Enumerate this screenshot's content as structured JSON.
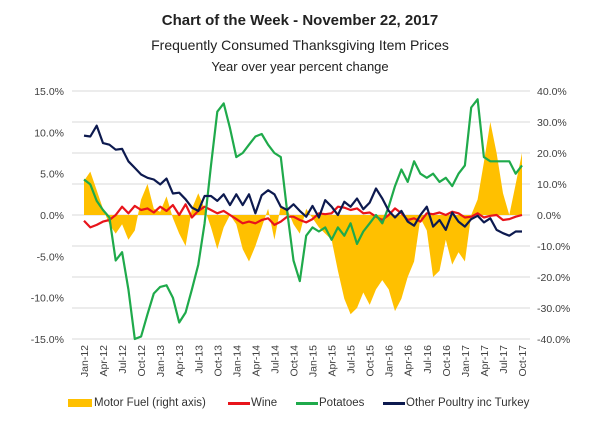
{
  "chart_data": {
    "type": "line",
    "title": "Chart of the Week - November 22, 2017",
    "subtitle": "Frequently Consumed Thanksgiving Item Prices",
    "subtitle2": "Year over year percent change",
    "left_axis": {
      "ylim": [
        -15,
        15
      ],
      "ticks": [
        "15.0%",
        "10.0%",
        "5.0%",
        "0.0%",
        "-5.0%",
        "-10.0%",
        "-15.0%"
      ],
      "tick_values": [
        15,
        10,
        5,
        0,
        -5,
        -10,
        -15
      ]
    },
    "right_axis": {
      "ylim": [
        -40,
        40
      ],
      "ticks": [
        "40.0%",
        "30.0%",
        "20.0%",
        "10.0%",
        "0.0%",
        "-10.0%",
        "-20.0%",
        "-30.0%",
        "-40.0%"
      ],
      "tick_values": [
        40,
        30,
        20,
        10,
        0,
        -10,
        -20,
        -30,
        -40
      ]
    },
    "x_tick_labels": [
      "Jan-12",
      "Apr-12",
      "Jul-12",
      "Oct-12",
      "Jan-13",
      "Apr-13",
      "Jul-13",
      "Oct-13",
      "Jan-14",
      "Apr-14",
      "Jul-14",
      "Oct-14",
      "Jan-15",
      "Apr-15",
      "Jul-15",
      "Oct-15",
      "Jan-16",
      "Apr-16",
      "Jul-16",
      "Oct-16",
      "Jan-17",
      "Apr-17",
      "Jul-17",
      "Oct-17"
    ],
    "months": 70,
    "grid": true,
    "legend_position": "bottom",
    "series": [
      {
        "name": "Motor Fuel (right axis)",
        "type": "area",
        "axis": "right",
        "color": "#FFC000",
        "values": [
          11,
          14,
          8,
          2,
          -3,
          -6,
          -3,
          -8,
          -5,
          5,
          10,
          2,
          1,
          6,
          -1,
          -6,
          -10,
          2,
          7,
          2,
          -4,
          -11,
          -4,
          0,
          -3,
          -11,
          -15,
          -10,
          -4,
          2,
          -8,
          3,
          2,
          -3,
          -6,
          2,
          -1,
          -4,
          -6,
          -8,
          -18,
          -27,
          -32,
          -30,
          -25,
          -29,
          -24,
          -21,
          -24,
          -31,
          -27,
          -20,
          -15,
          -1,
          -5,
          -20,
          -18,
          -8,
          -16,
          -12,
          -15,
          0,
          5,
          17,
          30,
          20,
          7,
          0,
          10,
          20
        ]
      },
      {
        "name": "Wine",
        "type": "line",
        "axis": "left",
        "color": "#E8141B",
        "values": [
          -0.7,
          -1.5,
          -1.2,
          -0.8,
          -0.6,
          0,
          1,
          0.2,
          1.1,
          0.6,
          0.8,
          0.3,
          1,
          0.5,
          1.2,
          0,
          1.3,
          -0.3,
          0.5,
          1,
          0.6,
          0.2,
          0.5,
          0,
          -0.5,
          -1,
          -0.8,
          -1,
          -0.6,
          -0.4,
          -1.2,
          -0.8,
          -0.2,
          -0.2,
          -0.6,
          -0.9,
          -0.5,
          0.2,
          0.1,
          0.2,
          1,
          0.9,
          0.6,
          0.8,
          0.2,
          0.3,
          -0.2,
          -0.6,
          0,
          0.8,
          0.2,
          -0.6,
          -0.4,
          -0.8,
          0.2,
          0.1,
          0.3,
          0,
          0.4,
          0.2,
          -0.3,
          -0.2,
          0.2,
          -0.3,
          -0.1,
          0,
          -0.6,
          -0.5,
          -0.2,
          0
        ]
      },
      {
        "name": "Potatoes",
        "type": "line",
        "axis": "left",
        "color": "#1FAA4B",
        "values": [
          4.3,
          3.7,
          1.7,
          0.6,
          -0.3,
          -5.5,
          -4.5,
          -9,
          -15,
          -14.7,
          -12,
          -9.5,
          -8.7,
          -8.5,
          -10,
          -13,
          -11.8,
          -9,
          -6,
          -1,
          6,
          12.5,
          13.5,
          10.5,
          7,
          7.5,
          8.5,
          9.5,
          9.8,
          8.5,
          7.5,
          7,
          0.5,
          -5.5,
          -8,
          -2.5,
          -1.5,
          -2,
          -1.5,
          -3,
          -1.5,
          -2.5,
          -1,
          -3.5,
          -2,
          -1,
          0,
          -1,
          1,
          3.5,
          5.5,
          4,
          6.5,
          5,
          4.5,
          5,
          4,
          4.5,
          3.5,
          5,
          6,
          13,
          14,
          7,
          6.5,
          6.5,
          6.5,
          6.5,
          5,
          6
        ]
      },
      {
        "name": "Other Poultry inc Turkey",
        "type": "line",
        "axis": "left",
        "color": "#0D1A4F",
        "values": [
          9.6,
          9.5,
          10.8,
          8.7,
          8.5,
          7.9,
          8,
          6.5,
          5.7,
          4.9,
          4.5,
          4.3,
          3.7,
          4.4,
          2.6,
          2.7,
          1.9,
          0.9,
          0.5,
          2.3,
          2.3,
          1.7,
          2.5,
          1.2,
          2.5,
          1.2,
          2.5,
          0.2,
          2.4,
          3,
          2.5,
          1,
          0.6,
          1.3,
          0.5,
          -0.2,
          1.1,
          -0.3,
          1.8,
          1,
          0,
          1.6,
          1,
          2,
          0.7,
          1.5,
          3.2,
          2,
          0.5,
          -0.3,
          0.5,
          -0.8,
          -1.3,
          0,
          1,
          -1.4,
          -0.6,
          -1.8,
          0.3,
          -0.8,
          -1.4,
          -0.5,
          -0.1,
          -0.9,
          -0.4,
          -1.8,
          -2.2,
          -2.5,
          -2,
          -2
        ]
      }
    ]
  }
}
